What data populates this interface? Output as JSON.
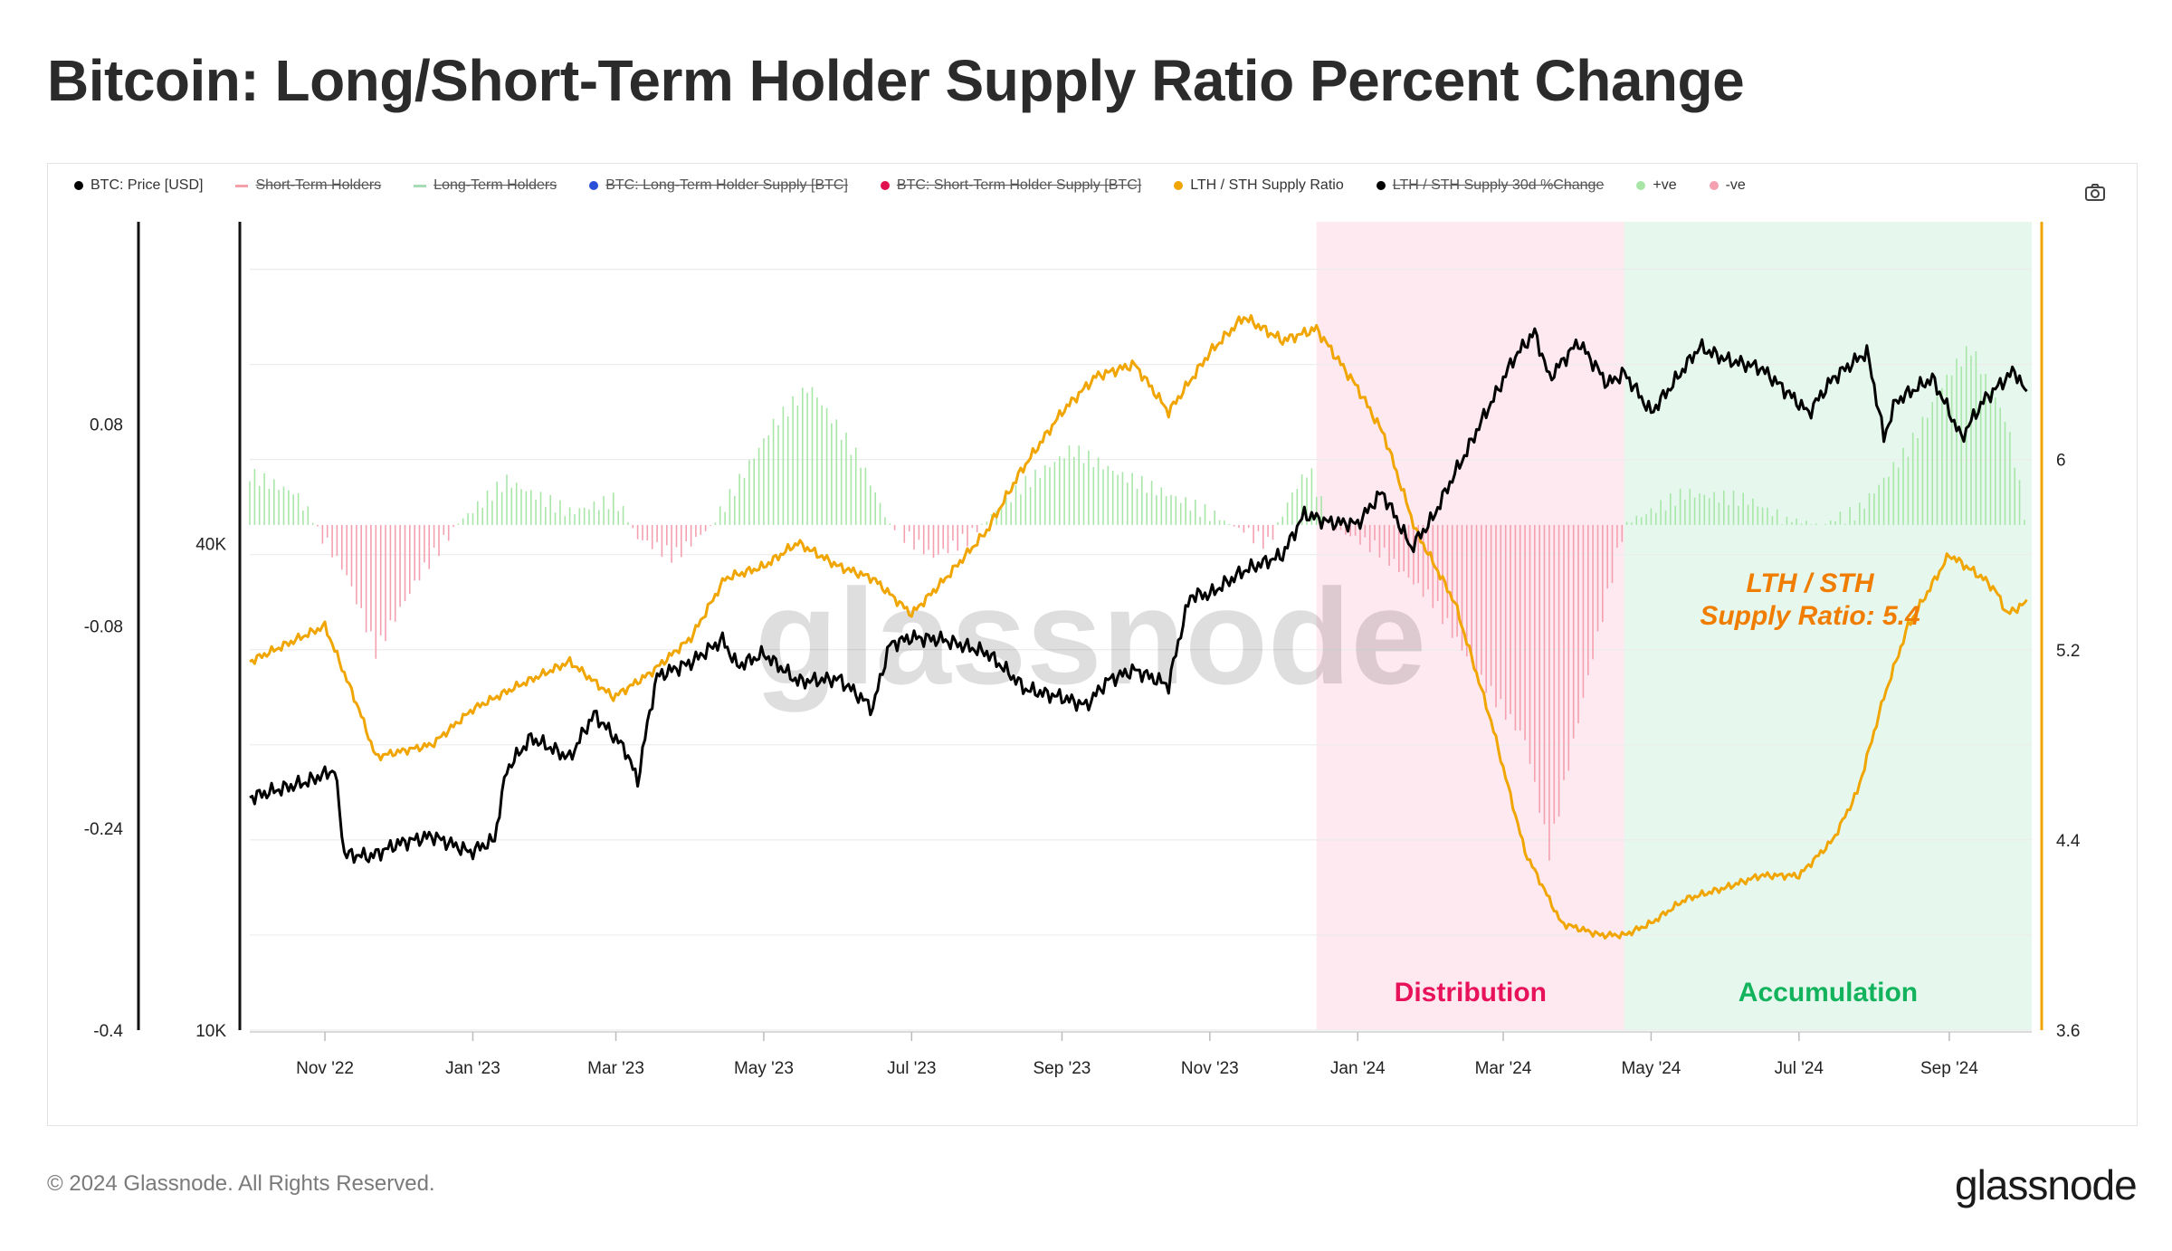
{
  "title": "Bitcoin: Long/Short-Term Holder Supply Ratio Percent Change",
  "legend": [
    {
      "label": "BTC: Price [USD]",
      "color": "#000000",
      "marker": "dot",
      "active": true
    },
    {
      "label": "Short-Term Holders",
      "color": "#f4a0a8",
      "marker": "line",
      "active": false
    },
    {
      "label": "Long-Term Holders",
      "color": "#a8dcb4",
      "marker": "line",
      "active": false
    },
    {
      "label": "BTC: Long-Term Holder Supply [BTC]",
      "color": "#2a4fd8",
      "marker": "dot",
      "active": false
    },
    {
      "label": "BTC: Short-Term Holder Supply [BTC]",
      "color": "#e0124f",
      "marker": "dot",
      "active": false
    },
    {
      "label": "LTH / STH Supply Ratio",
      "color": "#f0a500",
      "marker": "dot",
      "active": true
    },
    {
      "label": "LTH / STH Supply 30d %Change",
      "color": "#000000",
      "marker": "dot",
      "active": false
    },
    {
      "label": "+ve",
      "color": "#a8e6a8",
      "marker": "dot",
      "active": true
    },
    {
      "label": "-ve",
      "color": "#f4a0b0",
      "marker": "dot",
      "active": true
    }
  ],
  "camera_icon": "camera-icon",
  "zones": [
    {
      "label": "Distribution",
      "color": "#e8125a",
      "bg": "#fde9ef"
    },
    {
      "label": "Accumulation",
      "color": "#12b35c",
      "bg": "#e6f8ee"
    }
  ],
  "annotation": {
    "line1": "LTH / STH",
    "line2": "Supply Ratio: 5.4"
  },
  "watermark": "glassnode",
  "footer": {
    "copyright": "© 2024 Glassnode. All Rights Reserved.",
    "logo": "glassnode"
  },
  "chart_data": {
    "type": "line",
    "title": "Bitcoin: Long/Short-Term Holder Supply Ratio Percent Change",
    "x_ticks": [
      "Nov '22",
      "Jan '23",
      "Mar '23",
      "May '23",
      "Jul '23",
      "Sep '23",
      "Nov '23",
      "Jan '24",
      "Mar '24",
      "May '24",
      "Jul '24",
      "Sep '24"
    ],
    "x_range": [
      "2022-10-01",
      "2024-10-05"
    ],
    "axes": {
      "pct_change": {
        "ticks": [
          "0.08",
          "-0.08",
          "-0.24",
          "-0.4"
        ],
        "range": [
          -0.4,
          0.24
        ]
      },
      "price_log": {
        "ticks": [
          "40K",
          "10K"
        ],
        "range": [
          10000,
          100000
        ],
        "scale": "log"
      },
      "ratio": {
        "ticks": [
          "6",
          "5.2",
          "4.4",
          "3.6"
        ],
        "range": [
          3.6,
          7.0
        ]
      }
    },
    "zones": [
      {
        "label": "Distribution",
        "start": "2023-12-15",
        "end": "2024-04-20"
      },
      {
        "label": "Accumulation",
        "start": "2024-04-20",
        "end": "2024-10-05"
      }
    ],
    "series": [
      {
        "name": "BTC: Price [USD]",
        "axis": "price_log",
        "color": "#000000",
        "x": [
          "2022-10-01",
          "2022-10-25",
          "2022-11-05",
          "2022-11-09",
          "2022-11-20",
          "2022-12-01",
          "2022-12-15",
          "2022-12-31",
          "2023-01-10",
          "2023-01-15",
          "2023-01-25",
          "2023-02-10",
          "2023-02-20",
          "2023-03-05",
          "2023-03-10",
          "2023-03-18",
          "2023-04-01",
          "2023-04-14",
          "2023-04-20",
          "2023-05-01",
          "2023-05-15",
          "2023-06-01",
          "2023-06-15",
          "2023-06-22",
          "2023-07-01",
          "2023-07-14",
          "2023-08-01",
          "2023-08-17",
          "2023-09-01",
          "2023-09-11",
          "2023-09-20",
          "2023-10-01",
          "2023-10-15",
          "2023-10-24",
          "2023-11-01",
          "2023-11-15",
          "2023-12-01",
          "2023-12-10",
          "2023-12-20",
          "2024-01-01",
          "2024-01-11",
          "2024-01-23",
          "2024-02-01",
          "2024-02-15",
          "2024-02-28",
          "2024-03-05",
          "2024-03-14",
          "2024-03-20",
          "2024-04-01",
          "2024-04-13",
          "2024-04-20",
          "2024-05-01",
          "2024-05-10",
          "2024-05-21",
          "2024-06-01",
          "2024-06-15",
          "2024-07-05",
          "2024-07-15",
          "2024-07-29",
          "2024-08-05",
          "2024-08-10",
          "2024-08-25",
          "2024-09-06",
          "2024-09-15",
          "2024-09-28",
          "2024-10-03"
        ],
        "values": [
          19400,
          20300,
          21000,
          16500,
          16400,
          17000,
          17400,
          16600,
          17200,
          21000,
          23000,
          21700,
          24600,
          22200,
          20300,
          27400,
          28500,
          30400,
          28200,
          29200,
          27000,
          27200,
          25000,
          30000,
          30600,
          30400,
          29300,
          26400,
          25800,
          25200,
          27100,
          27900,
          26700,
          34500,
          34600,
          37000,
          38700,
          43500,
          42500,
          42300,
          46300,
          39500,
          43000,
          52000,
          62000,
          67500,
          73000,
          64000,
          71000,
          63000,
          65000,
          58000,
          63000,
          70000,
          67500,
          66000,
          58000,
          64000,
          69000,
          54000,
          60000,
          64000,
          54000,
          60000,
          65500,
          61000
        ]
      },
      {
        "name": "LTH / STH Supply Ratio",
        "axis": "ratio",
        "color": "#f0a500",
        "x": [
          "2022-10-01",
          "2022-11-01",
          "2022-11-15",
          "2022-11-22",
          "2022-12-15",
          "2023-01-01",
          "2023-01-20",
          "2023-02-10",
          "2023-02-28",
          "2023-03-15",
          "2023-04-01",
          "2023-04-15",
          "2023-05-01",
          "2023-05-15",
          "2023-06-01",
          "2023-06-15",
          "2023-07-01",
          "2023-07-15",
          "2023-08-01",
          "2023-08-15",
          "2023-09-01",
          "2023-09-15",
          "2023-10-01",
          "2023-10-15",
          "2023-11-01",
          "2023-11-15",
          "2023-12-01",
          "2023-12-15",
          "2024-01-01",
          "2024-01-12",
          "2024-01-25",
          "2024-02-10",
          "2024-02-25",
          "2024-03-10",
          "2024-03-25",
          "2024-04-10",
          "2024-04-20",
          "2024-05-01",
          "2024-05-15",
          "2024-06-01",
          "2024-06-15",
          "2024-07-01",
          "2024-07-15",
          "2024-07-25",
          "2024-08-05",
          "2024-08-15",
          "2024-09-01",
          "2024-09-15",
          "2024-09-20",
          "2024-09-25",
          "2024-10-03"
        ],
        "values": [
          5.15,
          5.3,
          4.95,
          4.75,
          4.8,
          4.95,
          5.05,
          5.15,
          5.0,
          5.1,
          5.25,
          5.5,
          5.55,
          5.65,
          5.55,
          5.5,
          5.35,
          5.5,
          5.7,
          5.95,
          6.2,
          6.35,
          6.4,
          6.2,
          6.45,
          6.6,
          6.5,
          6.55,
          6.3,
          6.1,
          5.7,
          5.4,
          4.9,
          4.35,
          4.05,
          4.0,
          4.0,
          4.05,
          4.15,
          4.2,
          4.25,
          4.25,
          4.4,
          4.6,
          5.0,
          5.3,
          5.6,
          5.5,
          5.45,
          5.35,
          5.4
        ]
      },
      {
        "name": "LTH / STH Supply 30d %Change",
        "axis": "pct_change",
        "color": "#a8e6a8",
        "x": [
          "2022-10-01",
          "2022-10-20",
          "2022-11-10",
          "2022-11-22",
          "2022-12-10",
          "2022-12-25",
          "2023-01-15",
          "2023-02-10",
          "2023-03-01",
          "2023-03-10",
          "2023-03-25",
          "2023-04-10",
          "2023-05-05",
          "2023-05-20",
          "2023-06-10",
          "2023-06-22",
          "2023-07-10",
          "2023-07-25",
          "2023-08-15",
          "2023-09-05",
          "2023-09-25",
          "2023-10-20",
          "2023-11-10",
          "2023-11-25",
          "2023-12-05",
          "2023-12-12",
          "2023-12-20",
          "2024-01-10",
          "2024-02-01",
          "2024-02-20",
          "2024-03-10",
          "2024-03-20",
          "2024-04-05",
          "2024-04-20",
          "2024-05-15",
          "2024-06-10",
          "2024-06-25",
          "2024-07-10",
          "2024-07-25",
          "2024-08-15",
          "2024-09-01",
          "2024-09-10",
          "2024-09-25",
          "2024-10-03"
        ],
        "values": [
          0.04,
          0.025,
          -0.04,
          -0.1,
          -0.04,
          0.0,
          0.035,
          0.01,
          0.02,
          -0.01,
          -0.025,
          0.0,
          0.08,
          0.11,
          0.05,
          0.0,
          -0.025,
          -0.01,
          0.03,
          0.06,
          0.04,
          0.02,
          0.0,
          -0.015,
          0.025,
          0.045,
          0.0,
          -0.02,
          -0.06,
          -0.12,
          -0.17,
          -0.26,
          -0.12,
          0.0,
          0.025,
          0.02,
          0.005,
          0.0,
          0.01,
          0.06,
          0.12,
          0.14,
          0.08,
          0.0
        ]
      }
    ]
  }
}
